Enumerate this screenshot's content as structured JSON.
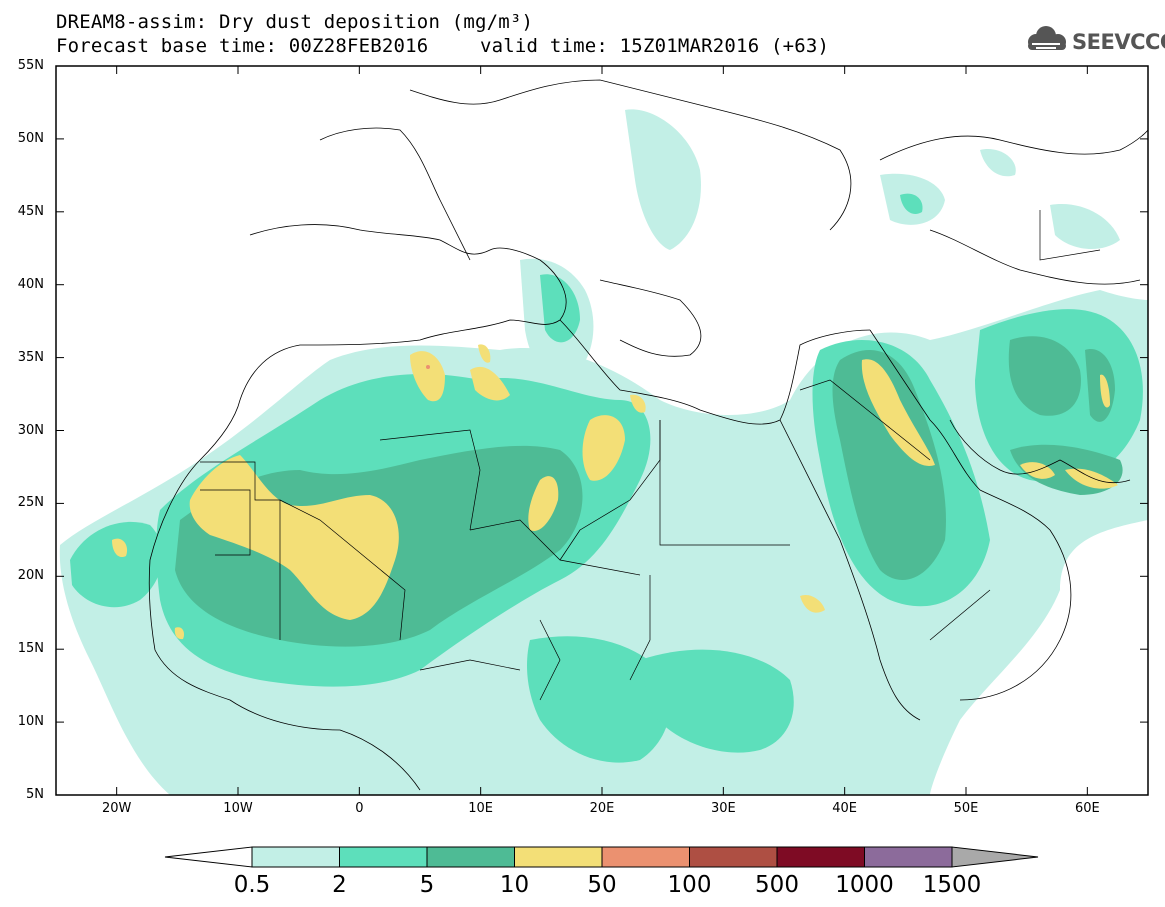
{
  "title": {
    "line1": "DREAM8-assim: Dry dust deposition (mg/m³)",
    "line2_left": "Forecast base time: 00Z28FEB2016",
    "line2_right": "valid time: 15Z01MAR2016 (+63)"
  },
  "logo": {
    "text": "SEEVCCC",
    "icon": "cloud-logo-icon"
  },
  "map": {
    "lat_labels": [
      "55N",
      "50N",
      "45N",
      "40N",
      "35N",
      "30N",
      "25N",
      "20N",
      "15N",
      "10N",
      "5N"
    ],
    "lon_labels": [
      "20W",
      "10W",
      "0",
      "10E",
      "20E",
      "30E",
      "40E",
      "50E",
      "60E"
    ],
    "lat_range": [
      5,
      55
    ],
    "lon_range": [
      -25,
      65
    ],
    "background": "#ffffff",
    "coastline_color": "#000000"
  },
  "legend": {
    "labels": [
      "0.5",
      "2",
      "5",
      "10",
      "50",
      "100",
      "500",
      "1000",
      "1500"
    ],
    "colors": [
      "#c2efe6",
      "#5ddfbb",
      "#4ebb95",
      "#f3df77",
      "#eb9170",
      "#ae4f43",
      "#7e0b24",
      "#8c6b9b"
    ],
    "under_color": "#ffffff",
    "over_color": "#a9a9a9"
  }
}
